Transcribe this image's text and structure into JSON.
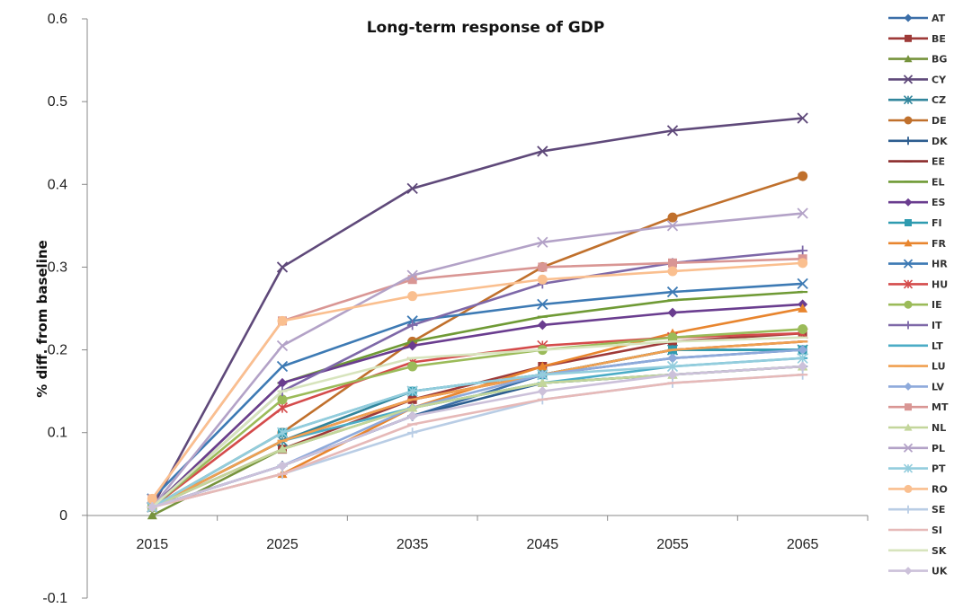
{
  "chart_data": {
    "type": "line",
    "title": "Long-term response of GDP",
    "ylabel": "% diff. from baseline",
    "xlabel": "",
    "categories": [
      "2015",
      "2025",
      "2035",
      "2045",
      "2055",
      "2065"
    ],
    "ylim": [
      -0.1,
      0.6
    ],
    "yticks": [
      "0.6",
      "0.5",
      "0.4",
      "0.3",
      "0.2",
      "0.1",
      "0",
      "-0.1"
    ],
    "ytick_values": [
      0.6,
      0.5,
      0.4,
      0.3,
      0.2,
      0.1,
      0,
      -0.1
    ],
    "grid": false,
    "legend_position": "right",
    "series": [
      {
        "name": "AT",
        "color": "#3b6ea8",
        "marker": "diamond",
        "values": [
          0.01,
          0.06,
          0.12,
          0.17,
          0.19,
          0.2
        ]
      },
      {
        "name": "BE",
        "color": "#9e3a38",
        "marker": "square",
        "values": [
          0.01,
          0.08,
          0.14,
          0.18,
          0.21,
          0.22
        ]
      },
      {
        "name": "BG",
        "color": "#76933c",
        "marker": "triangle",
        "values": [
          0.0,
          0.08,
          0.13,
          0.16,
          0.17,
          0.18
        ]
      },
      {
        "name": "CY",
        "color": "#5f497a",
        "marker": "x",
        "values": [
          0.01,
          0.3,
          0.395,
          0.44,
          0.465,
          0.48
        ]
      },
      {
        "name": "CZ",
        "color": "#31859c",
        "marker": "star",
        "values": [
          0.01,
          0.09,
          0.15,
          0.17,
          0.2,
          0.2
        ]
      },
      {
        "name": "DE",
        "color": "#c0702c",
        "marker": "circle",
        "values": [
          0.01,
          0.1,
          0.21,
          0.3,
          0.36,
          0.41
        ]
      },
      {
        "name": "DK",
        "color": "#2c5d8f",
        "marker": "plus",
        "values": [
          0.01,
          0.06,
          0.12,
          0.16,
          0.17,
          0.18
        ]
      },
      {
        "name": "EE",
        "color": "#8b2b2b",
        "marker": "dash",
        "values": [
          0.01,
          0.09,
          0.14,
          0.17,
          0.2,
          0.21
        ]
      },
      {
        "name": "EL",
        "color": "#6f9a35",
        "marker": "dash",
        "values": [
          0.01,
          0.16,
          0.21,
          0.24,
          0.26,
          0.27
        ]
      },
      {
        "name": "ES",
        "color": "#6a3d8f",
        "marker": "diamond",
        "values": [
          0.01,
          0.16,
          0.205,
          0.23,
          0.245,
          0.255
        ]
      },
      {
        "name": "FI",
        "color": "#2e9bb0",
        "marker": "square",
        "values": [
          0.01,
          0.1,
          0.15,
          0.17,
          0.2,
          0.2
        ]
      },
      {
        "name": "FR",
        "color": "#e8852e",
        "marker": "triangle",
        "values": [
          0.01,
          0.05,
          0.13,
          0.18,
          0.22,
          0.25
        ]
      },
      {
        "name": "HR",
        "color": "#3d7ab4",
        "marker": "x",
        "values": [
          0.02,
          0.18,
          0.235,
          0.255,
          0.27,
          0.28
        ]
      },
      {
        "name": "HU",
        "color": "#d44b4b",
        "marker": "star",
        "values": [
          0.01,
          0.13,
          0.185,
          0.205,
          0.215,
          0.22
        ]
      },
      {
        "name": "IE",
        "color": "#9bbb59",
        "marker": "circle",
        "values": [
          0.01,
          0.14,
          0.18,
          0.2,
          0.215,
          0.225
        ]
      },
      {
        "name": "IT",
        "color": "#7e68a8",
        "marker": "plus",
        "values": [
          0.01,
          0.15,
          0.23,
          0.28,
          0.305,
          0.32
        ]
      },
      {
        "name": "LT",
        "color": "#4bacc6",
        "marker": "dash",
        "values": [
          0.01,
          0.09,
          0.13,
          0.16,
          0.18,
          0.19
        ]
      },
      {
        "name": "LU",
        "color": "#f0a050",
        "marker": "dash",
        "values": [
          0.01,
          0.09,
          0.14,
          0.17,
          0.2,
          0.21
        ]
      },
      {
        "name": "LV",
        "color": "#8eaadb",
        "marker": "diamond",
        "values": [
          0.01,
          0.06,
          0.13,
          0.17,
          0.19,
          0.2
        ]
      },
      {
        "name": "MT",
        "color": "#d99694",
        "marker": "square",
        "values": [
          0.02,
          0.235,
          0.285,
          0.3,
          0.305,
          0.31
        ]
      },
      {
        "name": "NL",
        "color": "#c3d69b",
        "marker": "triangle",
        "values": [
          0.01,
          0.08,
          0.13,
          0.16,
          0.17,
          0.18
        ]
      },
      {
        "name": "PL",
        "color": "#b3a2c7",
        "marker": "x",
        "values": [
          0.01,
          0.205,
          0.29,
          0.33,
          0.35,
          0.365
        ]
      },
      {
        "name": "PT",
        "color": "#93cddd",
        "marker": "star",
        "values": [
          0.01,
          0.1,
          0.15,
          0.17,
          0.18,
          0.19
        ]
      },
      {
        "name": "RO",
        "color": "#fabf8f",
        "marker": "circle",
        "values": [
          0.02,
          0.235,
          0.265,
          0.285,
          0.295,
          0.305
        ]
      },
      {
        "name": "SE",
        "color": "#b9cde5",
        "marker": "plus",
        "values": [
          0.01,
          0.05,
          0.1,
          0.14,
          0.16,
          0.17
        ]
      },
      {
        "name": "SI",
        "color": "#e6b9b8",
        "marker": "dash",
        "values": [
          0.01,
          0.05,
          0.11,
          0.14,
          0.16,
          0.17
        ]
      },
      {
        "name": "SK",
        "color": "#d7e4bd",
        "marker": "dash",
        "values": [
          0.01,
          0.15,
          0.19,
          0.2,
          0.21,
          0.215
        ]
      },
      {
        "name": "UK",
        "color": "#ccc1da",
        "marker": "diamond",
        "values": [
          0.01,
          0.06,
          0.12,
          0.15,
          0.17,
          0.18
        ]
      }
    ]
  }
}
